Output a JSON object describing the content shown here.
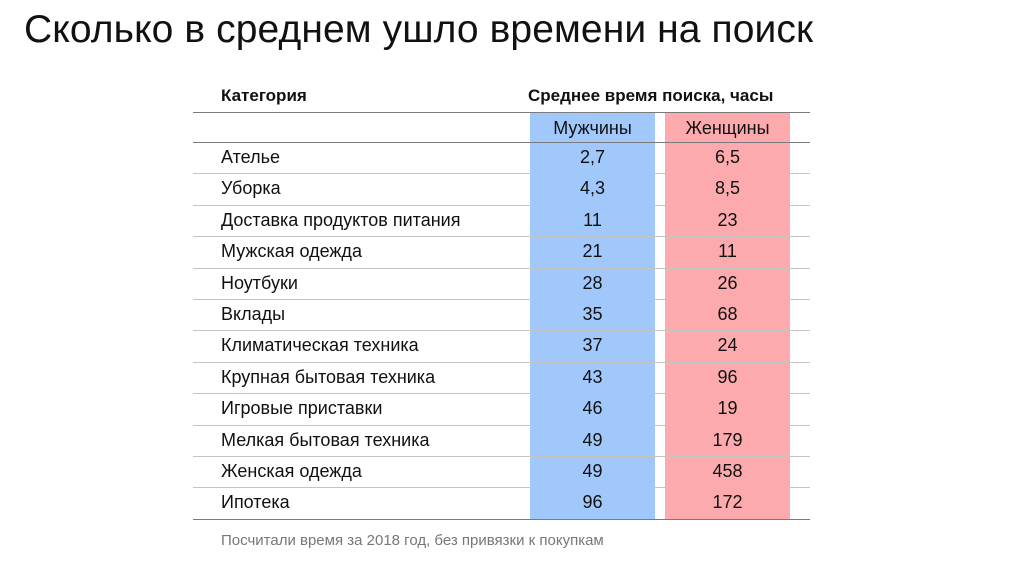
{
  "title": "Сколько в среднем ушло времени на поиск",
  "table": {
    "header_category": "Категория",
    "header_value": "Среднее время поиска, часы",
    "col_men": "Мужчины",
    "col_women": "Женщины",
    "colors": {
      "men": "#a1c8fb",
      "women": "#fcaaad"
    },
    "rows": [
      {
        "category": "Ателье",
        "men": "2,7",
        "women": "6,5"
      },
      {
        "category": "Уборка",
        "men": "4,3",
        "women": "8,5"
      },
      {
        "category": "Доставка продуктов питания",
        "men": "11",
        "women": "23"
      },
      {
        "category": "Мужская одежда",
        "men": "21",
        "women": "11"
      },
      {
        "category": "Ноутбуки",
        "men": "28",
        "women": "26"
      },
      {
        "category": "Вклады",
        "men": "35",
        "women": "68"
      },
      {
        "category": "Климатическая техника",
        "men": "37",
        "women": "24"
      },
      {
        "category": "Крупная бытовая техника",
        "men": "43",
        "women": "96"
      },
      {
        "category": "Игровые приставки",
        "men": "46",
        "women": "19"
      },
      {
        "category": "Мелкая бытовая техника",
        "men": "49",
        "women": "179"
      },
      {
        "category": "Женская одежда",
        "men": "49",
        "women": "458"
      },
      {
        "category": "Ипотека",
        "men": "96",
        "women": "172"
      }
    ]
  },
  "footnote": "Посчитали время за 2018 год, без привязки к покупкам"
}
